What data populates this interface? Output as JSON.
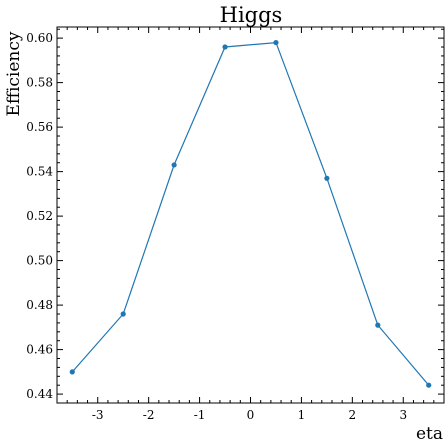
{
  "chart_data": {
    "type": "line",
    "title": "Higgs",
    "xlabel": "eta",
    "ylabel": "Efficiency",
    "xlim": [
      -3.8,
      3.8
    ],
    "ylim": [
      0.436,
      0.605
    ],
    "xticks": [
      -3,
      -2,
      -1,
      0,
      1,
      2,
      3
    ],
    "xtick_labels": [
      "-3",
      "-2",
      "-1",
      "0",
      "1",
      "2",
      "3"
    ],
    "yticks": [
      0.44,
      0.46,
      0.48,
      0.5,
      0.52,
      0.54,
      0.56,
      0.58,
      0.6
    ],
    "ytick_labels": [
      "0.44",
      "0.46",
      "0.48",
      "0.50",
      "0.52",
      "0.54",
      "0.56",
      "0.58",
      "0.60"
    ],
    "grid": false,
    "series": [
      {
        "color": "#1f77b4",
        "x": [
          -3.5,
          -2.5,
          -1.5,
          -0.5,
          0.5,
          1.5,
          2.5,
          3.5
        ],
        "y": [
          0.45,
          0.476,
          0.543,
          0.596,
          0.598,
          0.537,
          0.471,
          0.444
        ]
      }
    ]
  }
}
